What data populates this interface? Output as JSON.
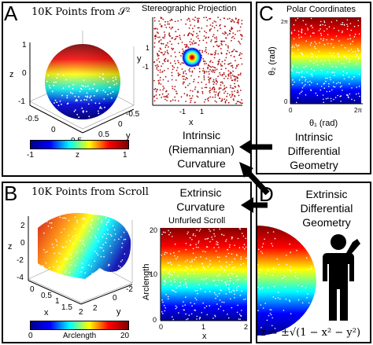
{
  "panels": {
    "A": {
      "letter": "A",
      "title": "10K Points from 𝒮²",
      "sphere_axes": {
        "z_ticks": [
          "1",
          "0",
          "-1"
        ],
        "z_label": "z",
        "x_ticks": [
          "-0.5",
          "0",
          "0.5"
        ],
        "x_label": "x",
        "y_ticks": [
          "0.5",
          "0",
          "-0.5"
        ],
        "y_label": "y"
      },
      "colorbar": {
        "min": "-1",
        "label": "z",
        "max": "1"
      },
      "stereo_title": "Stereographic Projection",
      "stereo_axes": {
        "y_label": "y",
        "y_ticks": [
          "1",
          "-1"
        ],
        "x_label": "x",
        "x_ticks": [
          "-1",
          "1"
        ]
      },
      "caption": [
        "Intrinsic",
        "(Riemannian)",
        "Curvature"
      ]
    },
    "B": {
      "letter": "B",
      "title": "10K Points from Scroll",
      "caption": [
        "Extrinsic",
        "Curvature"
      ],
      "scroll_axes": {
        "z_ticks": [
          "2",
          "0",
          "-2",
          "-4"
        ],
        "z_label": "z",
        "x_ticks": [
          "0",
          "0.5",
          "1",
          "1.5",
          "2"
        ],
        "x_label": "x",
        "y_ticks": [
          "2",
          "0",
          "-2"
        ],
        "y_label": "y"
      },
      "colorbar": {
        "min": "0",
        "label": "Arclength",
        "max": "20"
      },
      "unfurled_title": "Unfurled Scroll",
      "unfurled_axes": {
        "y_label": "Arclength",
        "y_ticks": [
          "20",
          "10",
          "0"
        ],
        "x_label": "x",
        "x_ticks": [
          "0",
          "1",
          "2"
        ]
      }
    },
    "C": {
      "letter": "C",
      "title": "Polar Coordinates",
      "axes": {
        "y_label": "θ₂ (rad)",
        "y_ticks": [
          "2π",
          "0"
        ],
        "x_label": "θ₁ (rad)",
        "x_ticks": [
          "0",
          "2π"
        ]
      },
      "caption": [
        "Intrinsic",
        "Differential",
        "Geometry"
      ]
    },
    "D": {
      "letter": "D",
      "caption": [
        "Extrinsic",
        "Differential",
        "Geometry"
      ],
      "formula": "z = ±√(1 − x² − y²)"
    }
  },
  "colors": {
    "jet": [
      "#00008f",
      "#0000ff",
      "#00ffff",
      "#ffff00",
      "#ff0000",
      "#800000"
    ],
    "stereo_points": "#b01010"
  }
}
